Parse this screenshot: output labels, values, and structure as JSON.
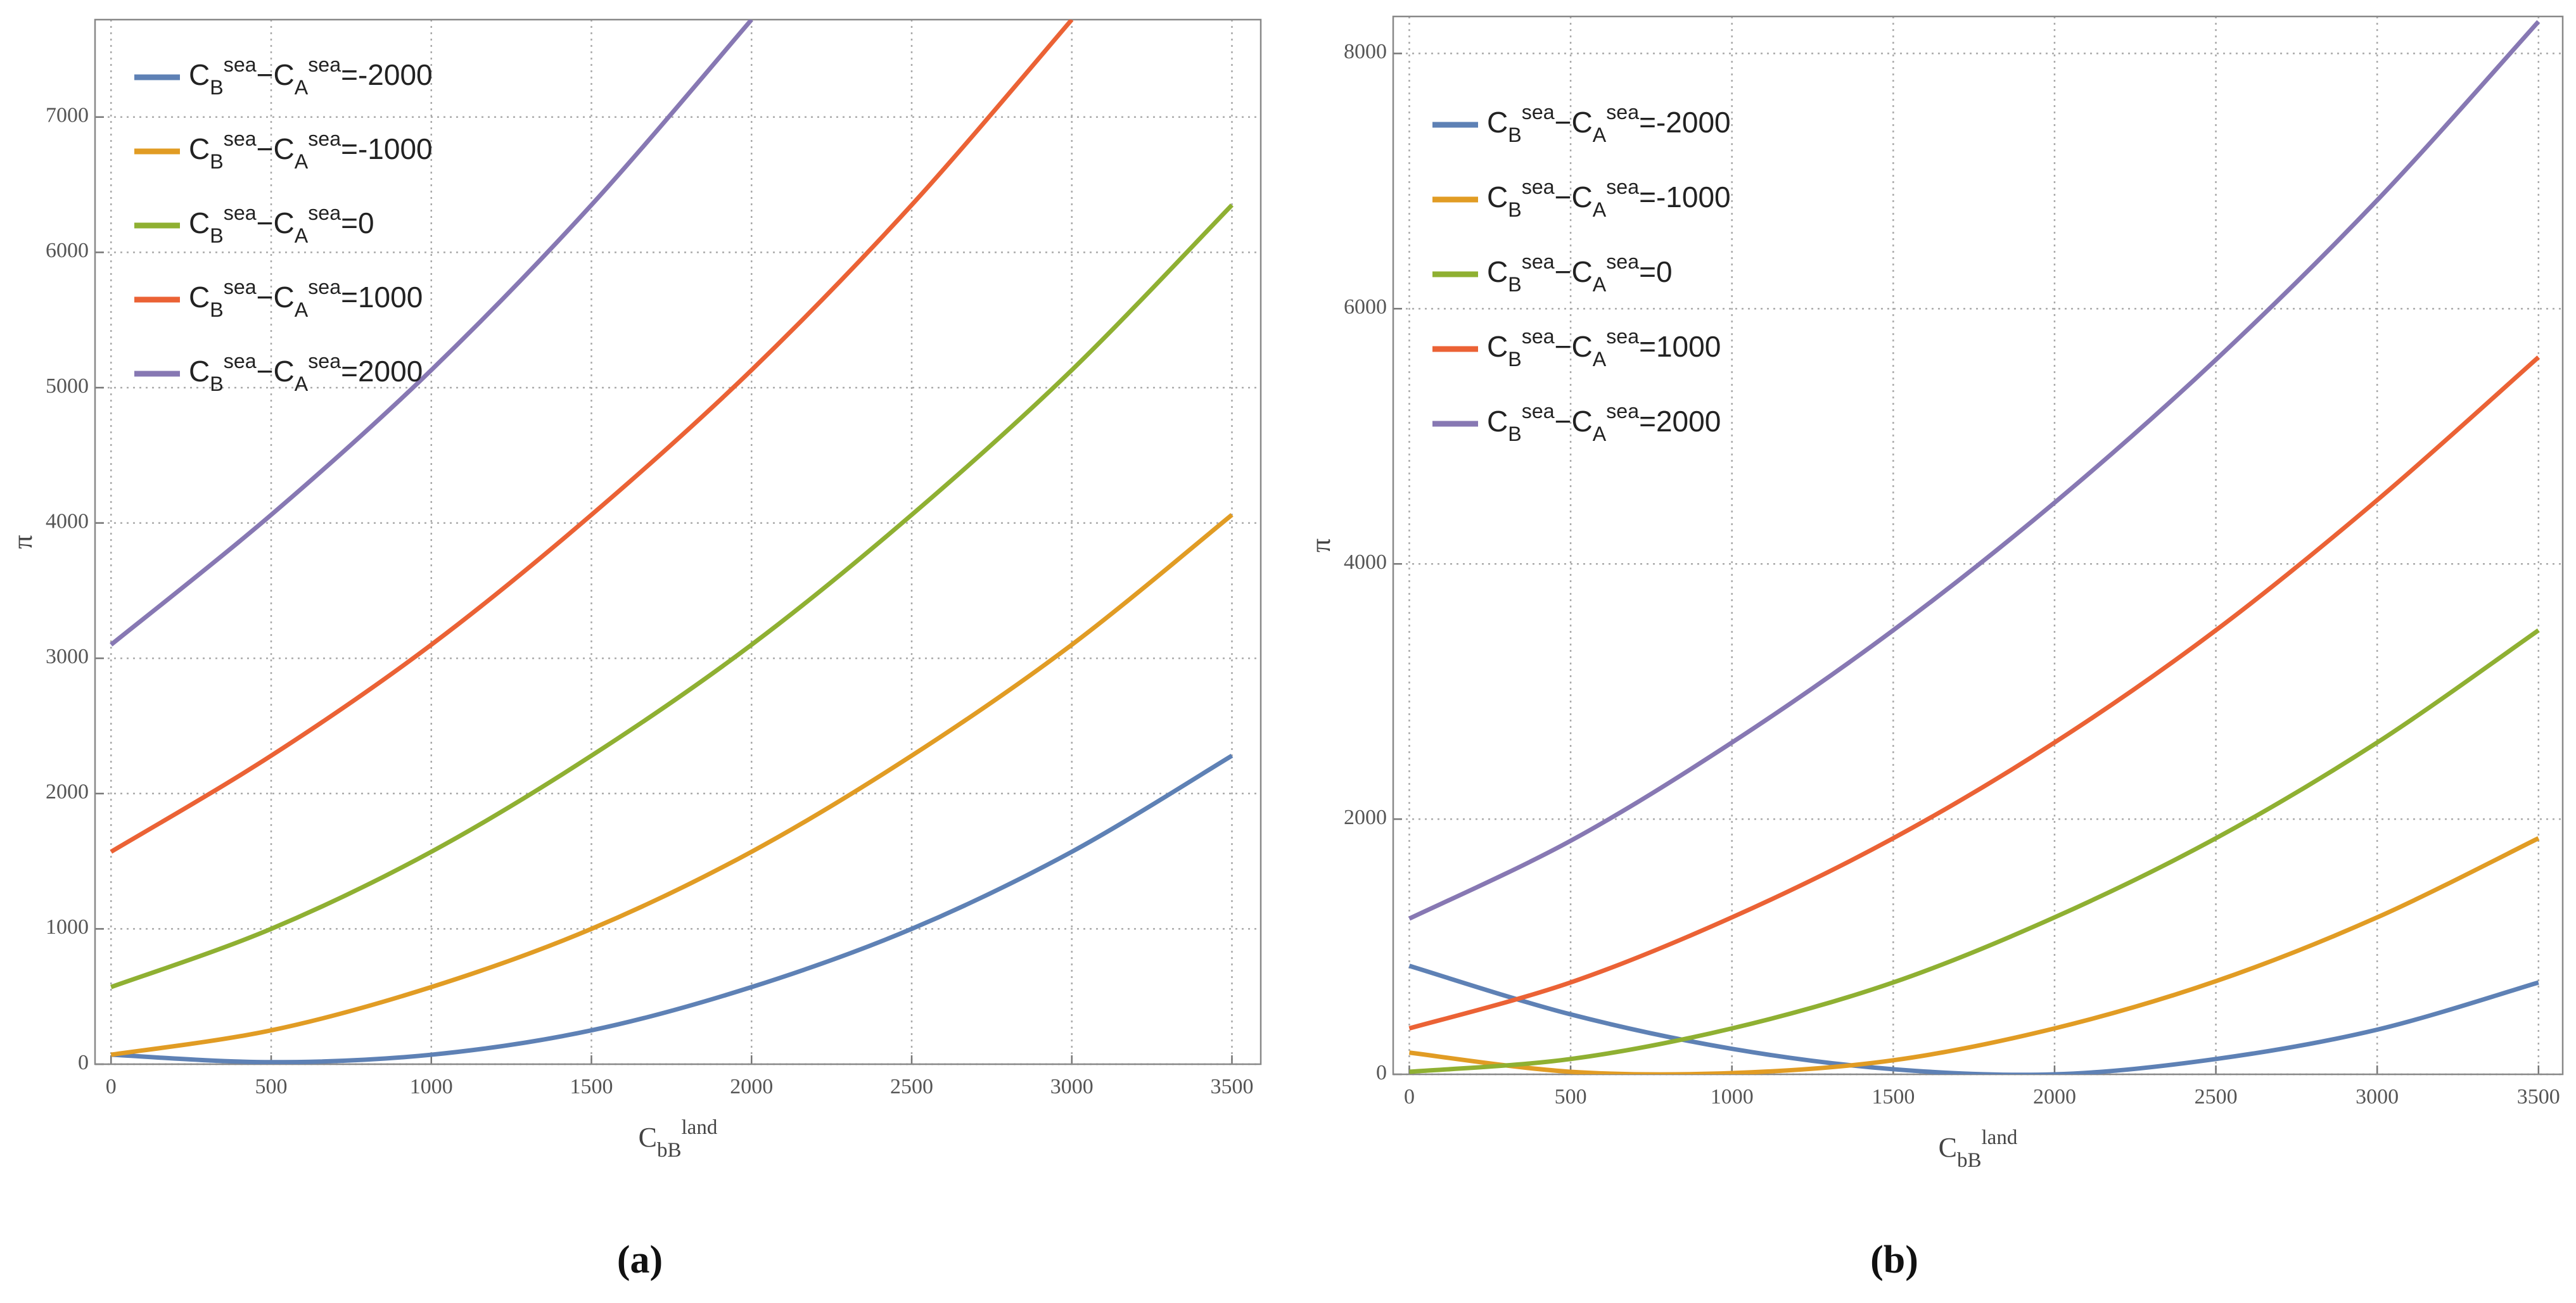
{
  "chart_data": [
    {
      "type": "line",
      "panel_label": "(a)",
      "xlabel": "CbBland",
      "ylabel": "π",
      "x": [
        0,
        500,
        1000,
        1500,
        2000,
        2500,
        3000,
        3500
      ],
      "xlim": [
        -50,
        3590
      ],
      "xticks": [
        0,
        500,
        1000,
        1500,
        2000,
        2500,
        3000,
        3500
      ],
      "ylim": [
        0,
        7720
      ],
      "yticks": [
        0,
        1000,
        2000,
        3000,
        4000,
        5000,
        6000,
        7000
      ],
      "grid": true,
      "legend": "upper left",
      "series": [
        {
          "name": "CBsea−CAsea=-2000",
          "color": "#5e81b5",
          "values": [
            70,
            15,
            70,
            250,
            570,
            1000,
            1570,
            2280
          ]
        },
        {
          "name": "CBsea−CAsea=-1000",
          "color": "#e19c24",
          "values": [
            70,
            250,
            570,
            1000,
            1570,
            2280,
            3100,
            4060
          ]
        },
        {
          "name": "CBsea−CAsea=0",
          "color": "#8fb032",
          "values": [
            570,
            1000,
            1570,
            2280,
            3100,
            4060,
            5130,
            6350
          ]
        },
        {
          "name": "CBsea−CAsea=1000",
          "color": "#eb6235",
          "values": [
            1570,
            2280,
            3100,
            4060,
            5130,
            6350,
            7720,
            null
          ]
        },
        {
          "name": "CBsea−CAsea=2000",
          "color": "#8778b3",
          "values": [
            3100,
            4060,
            5130,
            6350,
            7720,
            null,
            null,
            null
          ]
        }
      ]
    },
    {
      "type": "line",
      "panel_label": "(b)",
      "xlabel": "CbBland",
      "ylabel": "π",
      "x": [
        0,
        500,
        1000,
        1500,
        2000,
        2500,
        3000,
        3500
      ],
      "xlim": [
        -50,
        3575
      ],
      "xticks": [
        0,
        500,
        1000,
        1500,
        2000,
        2500,
        3000,
        3500
      ],
      "ylim": [
        0,
        8290
      ],
      "yticks": [
        0,
        2000,
        4000,
        6000,
        8000
      ],
      "grid": true,
      "legend": "upper left",
      "series": [
        {
          "name": "CBsea−CAsea=-2000",
          "color": "#5e81b5",
          "values": [
            850,
            470,
            200,
            40,
            0,
            120,
            350,
            720
          ]
        },
        {
          "name": "CBsea−CAsea=-1000",
          "color": "#e19c24",
          "values": [
            170,
            20,
            10,
            110,
            360,
            730,
            1230,
            1850
          ]
        },
        {
          "name": "CBsea−CAsea=0",
          "color": "#8fb032",
          "values": [
            20,
            120,
            360,
            720,
            1230,
            1850,
            2600,
            3480
          ]
        },
        {
          "name": "CBsea−CAsea=1000",
          "color": "#eb6235",
          "values": [
            360,
            720,
            1230,
            1850,
            2600,
            3480,
            4500,
            5620
          ]
        },
        {
          "name": "CBsea−CAsea=2000",
          "color": "#8778b3",
          "values": [
            1220,
            1830,
            2600,
            3480,
            4480,
            5600,
            6850,
            8250
          ]
        }
      ]
    }
  ]
}
